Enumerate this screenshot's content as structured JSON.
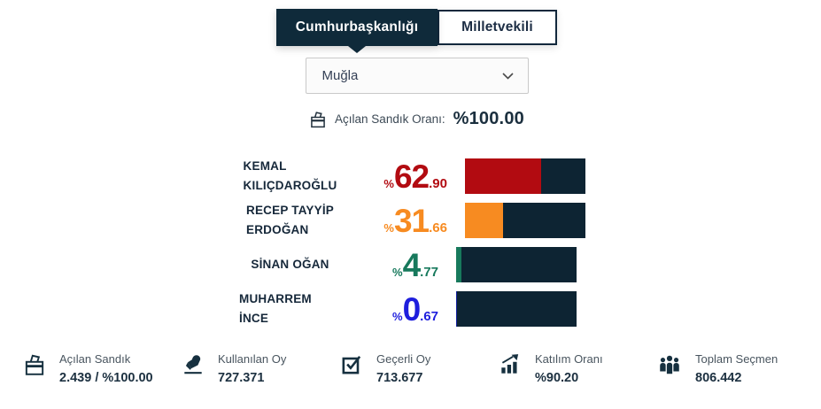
{
  "tabs": [
    {
      "label": "Cumhurbaşkanlığı",
      "active": true
    },
    {
      "label": "Milletvekili",
      "active": false
    }
  ],
  "province_select": {
    "value": "Muğla"
  },
  "opened_ratio": {
    "label": "Açılan Sandık Oranı:",
    "value": "%100.00"
  },
  "candidates": [
    {
      "name_line1": "KEMAL",
      "name_line2": "KILIÇDAROĞLU",
      "pct_symbol": "%",
      "pct_int": "62",
      "pct_dec": ".90",
      "percent": 62.9,
      "text_color": "#b20b11",
      "bar_color": "#b20b11"
    },
    {
      "name_line1": "RECEP TAYYİP",
      "name_line2": "ERDOĞAN",
      "pct_symbol": "%",
      "pct_int": "31",
      "pct_dec": ".66",
      "percent": 31.66,
      "text_color": "#f78b21",
      "bar_color": "#f78b21"
    },
    {
      "name_line1": "SİNAN OĞAN",
      "name_line2": null,
      "pct_symbol": "%",
      "pct_int": "4",
      "pct_dec": ".77",
      "percent": 4.77,
      "text_color": "#17795c",
      "bar_color": "#17795c"
    },
    {
      "name_line1": "MUHARREM İNCE",
      "name_line2": null,
      "pct_symbol": "%",
      "pct_int": "0",
      "pct_dec": ".67",
      "percent": 0.67,
      "text_color": "#1e1edd",
      "bar_color": "#101f9e"
    }
  ],
  "chart_data": {
    "type": "bar",
    "title": "",
    "categories": [
      "KEMAL KILIÇDAROĞLU",
      "RECEP TAYYİP ERDOĞAN",
      "SİNAN OĞAN",
      "MUHARREM İNCE"
    ],
    "values": [
      62.9,
      31.66,
      4.77,
      0.67
    ],
    "unit": "%",
    "xlim": [
      0,
      100
    ],
    "bar_colors": [
      "#b20b11",
      "#f78b21",
      "#17795c",
      "#101f9e"
    ],
    "track_color": "#0d2433",
    "legend": "none",
    "grid": false
  },
  "stats": [
    {
      "label": "Açılan Sandık",
      "value": "2.439 / %100.00",
      "icon": "ballot-box-icon"
    },
    {
      "label": "Kullanılan Oy",
      "value": "727.371",
      "icon": "voting-hand-icon"
    },
    {
      "label": "Geçerli Oy",
      "value": "713.677",
      "icon": "valid-vote-icon"
    },
    {
      "label": "Katılım Oranı",
      "value": "%90.20",
      "icon": "participation-chart-icon"
    },
    {
      "label": "Toplam Seçmen",
      "value": "806.442",
      "icon": "voters-group-icon"
    }
  ],
  "colors": {
    "navy": "#0f2a3a",
    "bar_track": "#0d2433",
    "accent_red": "#b20b11",
    "accent_orange": "#f78b21",
    "accent_green": "#17795c",
    "accent_blue": "#1e1edd"
  }
}
